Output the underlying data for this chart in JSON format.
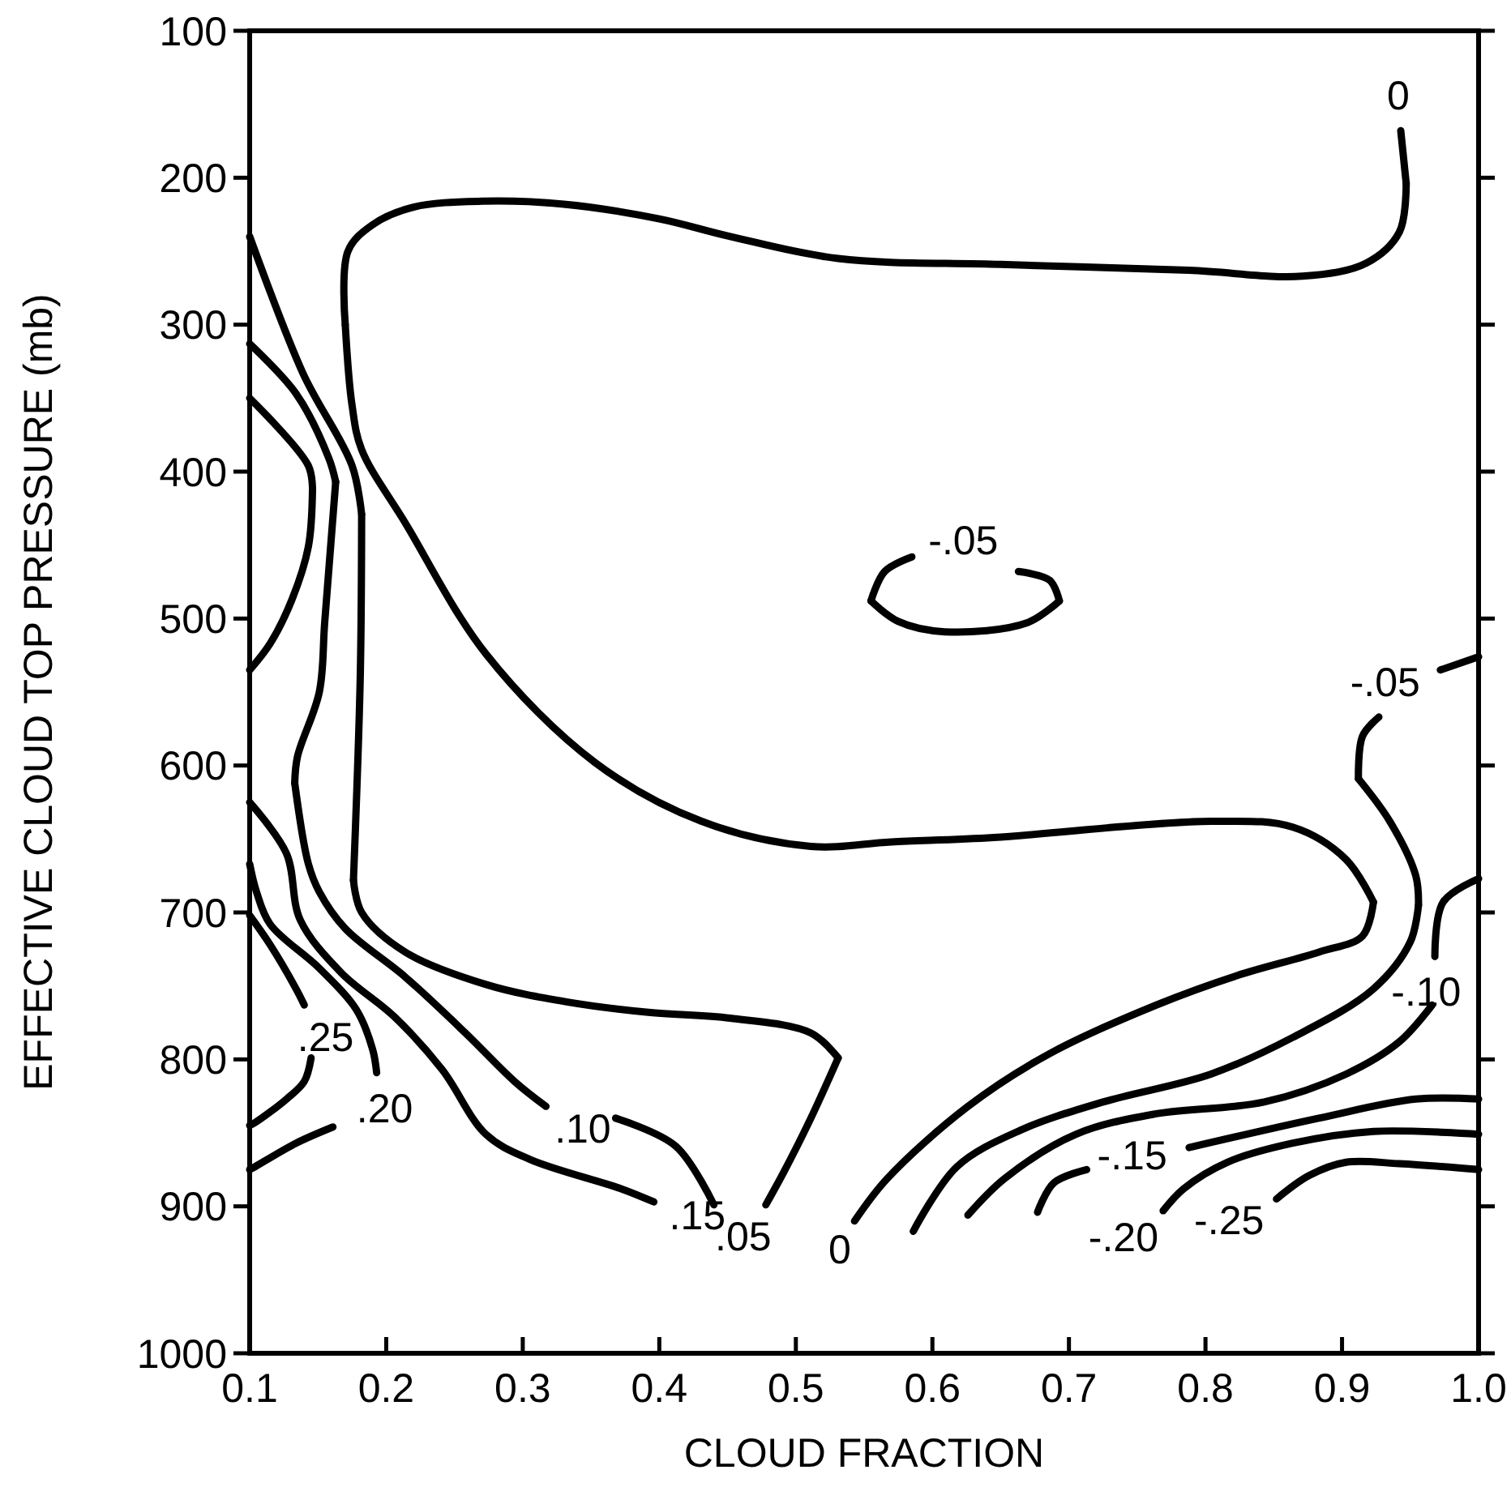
{
  "chart_data": {
    "type": "line",
    "xlabel": "CLOUD FRACTION",
    "ylabel": "EFFECTIVE CLOUD TOP PRESSURE (mb)",
    "xlim": [
      0.1,
      1.0
    ],
    "ylim": [
      1000,
      100
    ],
    "xticks": [
      0.1,
      0.2,
      0.3,
      0.4,
      0.5,
      0.6,
      0.7,
      0.8,
      0.9,
      {
        "value": 1.0,
        "label": "1.0"
      }
    ],
    "yticks": [
      100,
      200,
      300,
      400,
      500,
      600,
      700,
      800,
      900,
      1000
    ],
    "grid": false,
    "series": [
      {
        "name": "0",
        "color": "#000000",
        "x": [
          0.947,
          0.943
        ],
        "values": [
          204,
          168
        ]
      },
      {
        "color": "#000000",
        "x": [
          0.947,
          0.942,
          0.918,
          0.871,
          0.788,
          0.65,
          0.531,
          0.452,
          0.4,
          0.33,
          0.27,
          0.22,
          0.19,
          0.172,
          0.17
        ],
        "values": [
          204,
          237,
          258,
          267,
          263,
          259,
          255,
          240,
          228,
          218,
          216,
          220,
          232,
          250,
          300
        ]
      },
      {
        "color": "#000000",
        "x": [
          0.17,
          0.175,
          0.182,
          0.214,
          0.273,
          0.353,
          0.431,
          0.511,
          0.57,
          0.645,
          0.804,
          0.864,
          0.903,
          0.923
        ],
        "values": [
          300,
          355,
          385,
          435,
          524,
          598,
          638,
          655,
          652,
          649,
          638,
          642,
          664,
          693
        ]
      },
      {
        "name": "0",
        "color": "#000000",
        "x": [
          0.923,
          0.915,
          0.883,
          0.823,
          0.764,
          0.686,
          0.626,
          0.567,
          0.543
        ],
        "values": [
          693,
          716,
          727,
          743,
          763,
          796,
          832,
          881,
          910
        ]
      },
      {
        "color": "#000000",
        "x": [
          0.1,
          0.139,
          0.175,
          0.182
        ],
        "values": [
          240,
          333,
          396,
          429
        ]
      },
      {
        "color": "#000000",
        "x": [
          0.182,
          0.181,
          0.176
        ],
        "values": [
          429,
          539,
          678
        ]
      },
      {
        "color": "#000000",
        "x": [
          0.176,
          0.182,
          0.214,
          0.273,
          0.333,
          0.392,
          0.452,
          0.511,
          0.531
        ],
        "values": [
          678,
          700,
          727,
          749,
          761,
          768,
          772,
          782,
          799
        ]
      },
      {
        "name": ".05",
        "color": "#000000",
        "x": [
          0.531,
          0.511,
          0.491,
          0.478
        ],
        "values": [
          799,
          840,
          877,
          899
        ]
      },
      {
        "color": "#000000",
        "x": [
          0.1,
          0.134,
          0.158,
          0.163
        ],
        "values": [
          313,
          347,
          391,
          407
        ]
      },
      {
        "color": "#000000",
        "x": [
          0.163,
          0.155,
          0.151,
          0.135,
          0.133
        ],
        "values": [
          407,
          502,
          550,
          594,
          612
        ]
      },
      {
        "name": ".10",
        "color": "#000000",
        "x": [
          0.133,
          0.143,
          0.151,
          0.17,
          0.214,
          0.258,
          0.294,
          0.317
        ],
        "values": [
          612,
          667,
          686,
          711,
          744,
          782,
          815,
          832
        ]
      },
      {
        "color": "#000000",
        "x": [
          0.368,
          0.412,
          0.44
        ],
        "values": [
          840,
          859,
          899
        ]
      },
      {
        "color": "#000000",
        "x": [
          0.1,
          0.143,
          0.146
        ],
        "values": [
          350,
          396,
          413
        ]
      },
      {
        "color": "#000000",
        "x": [
          0.146,
          0.143,
          0.131,
          0.115,
          0.1
        ],
        "values": [
          413,
          451,
          487,
          517,
          535
        ]
      },
      {
        "name": ".15",
        "color": "#000000",
        "x": [
          0.1,
          0.127,
          0.137,
          0.167,
          0.206,
          0.241,
          0.273,
          0.305,
          0.372,
          0.396
        ],
        "values": [
          625,
          660,
          705,
          741,
          771,
          807,
          851,
          868,
          888,
          897
        ]
      },
      {
        "name": ".20",
        "color": "#000000",
        "x": [
          0.1,
          0.105,
          0.115,
          0.151,
          0.178,
          0.19,
          0.193
        ],
        "values": [
          667,
          686,
          708,
          738,
          766,
          793,
          809
        ]
      },
      {
        "color": "#000000",
        "x": [
          0.161,
          0.134,
          0.104,
          0.1
        ],
        "values": [
          846,
          857,
          873,
          875
        ]
      },
      {
        "name": ".25",
        "color": "#000000",
        "x": [
          0.1,
          0.115,
          0.134,
          0.14
        ],
        "values": [
          702,
          722,
          752,
          763
        ]
      },
      {
        "color": "#000000",
        "x": [
          0.145,
          0.14,
          0.127,
          0.104,
          0.1
        ],
        "values": [
          799,
          815,
          827,
          843,
          845
        ]
      },
      {
        "name": "-.05",
        "color": "#000000",
        "x": [
          0.555,
          0.565,
          0.585
        ],
        "values": [
          488,
          468,
          458
        ]
      },
      {
        "color": "#000000",
        "x": [
          0.555,
          0.575,
          0.609,
          0.669,
          0.693
        ],
        "values": [
          488,
          502,
          509,
          503,
          488
        ]
      },
      {
        "color": "#000000",
        "x": [
          0.693,
          0.686,
          0.663
        ],
        "values": [
          488,
          474,
          468
        ]
      },
      {
        "name": "-.05",
        "color": "#000000",
        "x": [
          1.0,
          0.972
        ],
        "values": [
          526,
          535
        ]
      },
      {
        "color": "#000000",
        "x": [
          0.927,
          0.915,
          0.912
        ],
        "values": [
          567,
          580,
          609
        ]
      },
      {
        "color": "#000000",
        "x": [
          0.912,
          0.935,
          0.954,
          0.956
        ],
        "values": [
          609,
          638,
          675,
          695
        ]
      },
      {
        "color": "#000000",
        "x": [
          0.956,
          0.95,
          0.923,
          0.864,
          0.804,
          0.725,
          0.665,
          0.618,
          0.586
        ],
        "values": [
          695,
          720,
          752,
          785,
          810,
          829,
          848,
          873,
          917
        ]
      },
      {
        "name": "-.10",
        "color": "#000000",
        "x": [
          1.0,
          0.974,
          0.968
        ],
        "values": [
          677,
          693,
          730
        ]
      },
      {
        "color": "#000000",
        "x": [
          0.966,
          0.942,
          0.903,
          0.843,
          0.764,
          0.705,
          0.653,
          0.626
        ],
        "values": [
          763,
          788,
          810,
          829,
          837,
          851,
          881,
          906
        ]
      },
      {
        "name": "-.15",
        "color": "#000000",
        "x": [
          1.0,
          0.954,
          0.883,
          0.788
        ],
        "values": [
          827,
          827,
          840,
          860
        ]
      },
      {
        "color": "#000000",
        "x": [
          0.713,
          0.689,
          0.677
        ],
        "values": [
          875,
          884,
          904
        ]
      },
      {
        "name": "-.20",
        "color": "#000000",
        "x": [
          1.0,
          0.923,
          0.864,
          0.816,
          0.784,
          0.769
        ],
        "values": [
          851,
          849,
          857,
          870,
          888,
          903
        ]
      },
      {
        "name": "-.25",
        "color": "#000000",
        "x": [
          1.0,
          0.942,
          0.903,
          0.876,
          0.852
        ],
        "values": [
          875,
          871,
          870,
          879,
          895
        ]
      }
    ]
  }
}
